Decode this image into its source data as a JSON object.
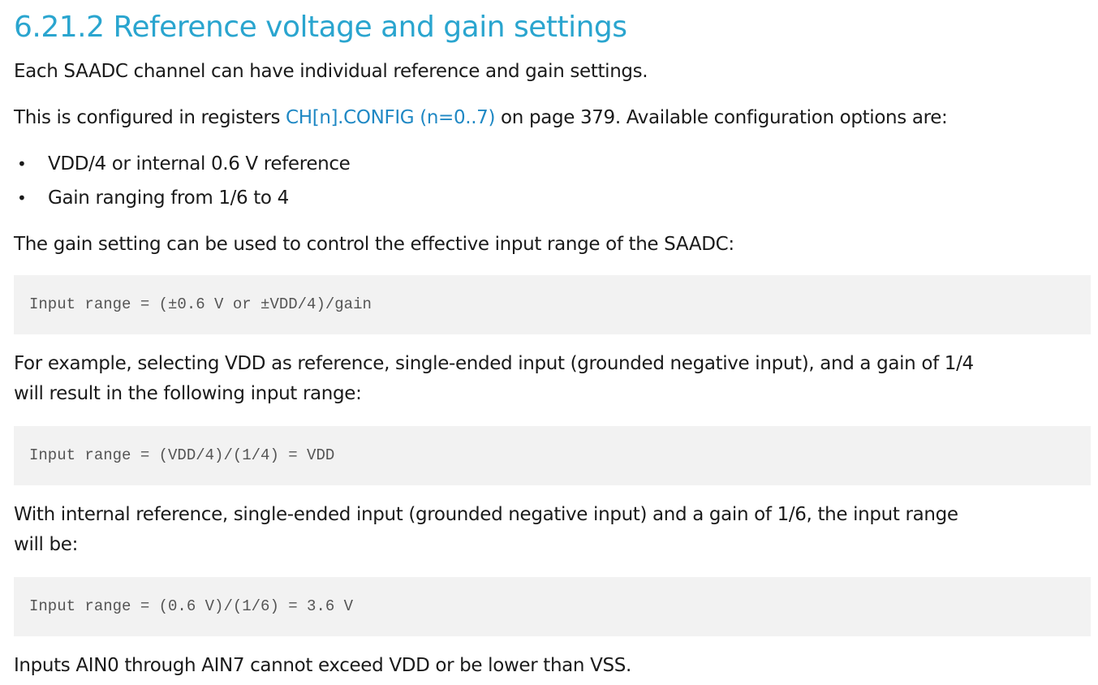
{
  "heading": "6.21.2 Reference voltage and gain settings",
  "paragraphs": {
    "p1": "Each SAADC channel can have individual reference and gain settings.",
    "p2_before": "This is configured in registers ",
    "p2_link": "CH[n].CONFIG (n=0..7)",
    "p2_after": " on page 379. Available configuration options are:",
    "p3": "The gain setting can be used to control the effective input range of the SAADC:",
    "p4_line1": "For example, selecting VDD as reference, single-ended input (grounded negative input), and a gain of 1/4",
    "p4_line2": "will result in the following input range:",
    "p5_line1": "With internal reference, single-ended input (grounded negative input) and a gain of 1/6, the input range",
    "p5_line2": "will be:",
    "p6": "Inputs AIN0 through AIN7 cannot exceed VDD or be lower than VSS."
  },
  "bullets": [
    "VDD/4 or internal 0.6 V reference",
    "Gain ranging from 1/6 to 4"
  ],
  "bullet_symbol": "•",
  "code_blocks": [
    "Input range = (±0.6 V or ±VDD/4)/gain",
    "Input range = (VDD/4)/(1/4) = VDD",
    "Input range = (0.6 V)/(1/6) = 3.6 V"
  ],
  "colors": {
    "heading": "#2aa5cf",
    "link": "#1f88c4",
    "code_background": "#f2f2f2"
  }
}
